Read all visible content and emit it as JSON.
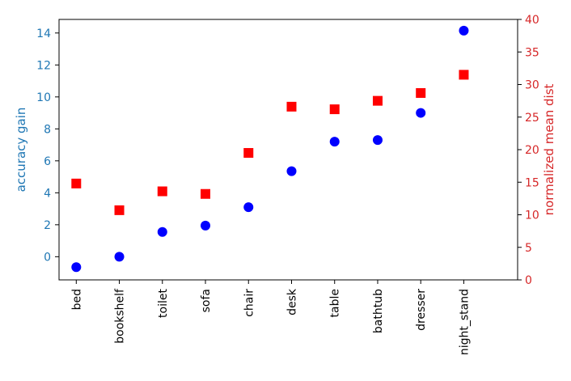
{
  "chart_data": {
    "type": "scatter",
    "categories": [
      "bed",
      "bookshelf",
      "toilet",
      "sofa",
      "chair",
      "desk",
      "table",
      "bathtub",
      "dresser",
      "night_stand"
    ],
    "series": [
      {
        "axis": "left",
        "marker": "circle",
        "color": "#0000ff",
        "values": [
          -0.65,
          0.0,
          1.55,
          1.95,
          3.1,
          5.35,
          7.2,
          7.3,
          9.0,
          14.15
        ]
      },
      {
        "axis": "right",
        "marker": "square",
        "color": "#ff0000",
        "values": [
          14.8,
          10.7,
          13.6,
          13.2,
          19.5,
          26.6,
          26.2,
          27.5,
          28.7,
          31.5
        ]
      }
    ],
    "y_left": {
      "label": "accuracy gain",
      "color": "#1f77b4",
      "lim": [
        -1.45,
        14.85
      ],
      "ticks": [
        0,
        2,
        4,
        6,
        8,
        10,
        12,
        14
      ]
    },
    "y_right": {
      "label": "normalized mean dist",
      "color": "#d62728",
      "lim": [
        0,
        40
      ],
      "ticks": [
        0,
        5,
        10,
        15,
        20,
        25,
        30,
        35,
        40
      ]
    },
    "grid": false
  }
}
